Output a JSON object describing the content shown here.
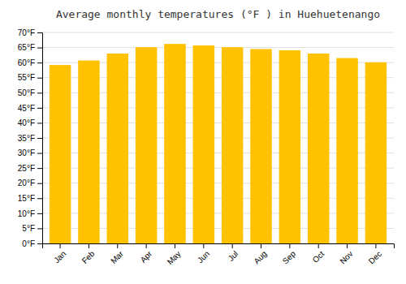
{
  "chart_data": {
    "type": "bar",
    "title": "Average monthly temperatures (°F ) in Huehuetenango",
    "categories": [
      "Jan",
      "Feb",
      "Mar",
      "Apr",
      "May",
      "Jun",
      "Jul",
      "Aug",
      "Sep",
      "Oct",
      "Nov",
      "Dec"
    ],
    "values": [
      59.2,
      60.7,
      63.0,
      65.1,
      66.2,
      65.7,
      65.1,
      64.5,
      64.1,
      63.0,
      61.5,
      60.1
    ],
    "color": "#FFC200",
    "ylim": [
      0,
      70
    ],
    "yticks": [
      {
        "value": 0,
        "label": "0°F"
      },
      {
        "value": 5,
        "label": "5°F"
      },
      {
        "value": 10,
        "label": "10°F"
      },
      {
        "value": 15,
        "label": "15°F"
      },
      {
        "value": 20,
        "label": "20°F"
      },
      {
        "value": 25,
        "label": "25°F"
      },
      {
        "value": 30,
        "label": "30°F"
      },
      {
        "value": 35,
        "label": "35°F"
      },
      {
        "value": 40,
        "label": "40°F"
      },
      {
        "value": 45,
        "label": "45°F"
      },
      {
        "value": 50,
        "label": "50°F"
      },
      {
        "value": 55,
        "label": "55°F"
      },
      {
        "value": 60,
        "label": "60°F"
      },
      {
        "value": 65,
        "label": "65°F"
      },
      {
        "value": 70,
        "label": "70°F"
      }
    ],
    "grid": true
  }
}
